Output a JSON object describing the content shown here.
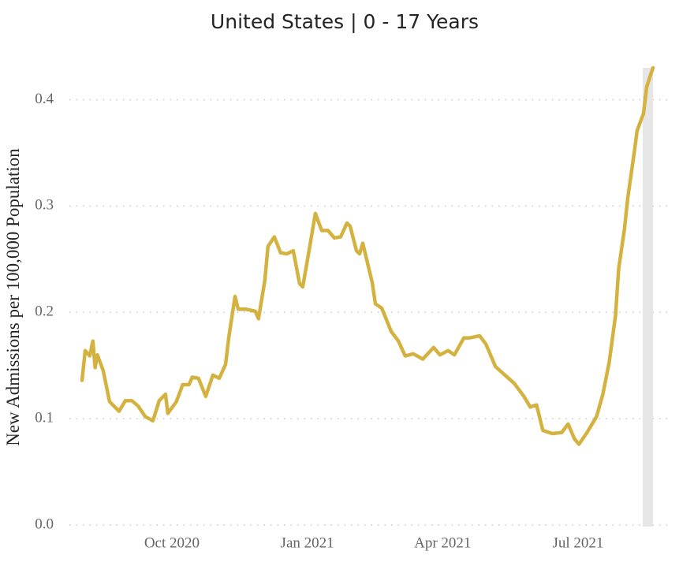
{
  "chart_data": {
    "type": "line",
    "title": "United States | 0 - 17 Years",
    "y_label": "New Admissions per 100,000 Population",
    "color": "#d4b23f",
    "grid": true,
    "xlim": [
      6.73,
      20.01
    ],
    "xticks": [
      {
        "value": 9,
        "label": "Oct 2020"
      },
      {
        "value": 12,
        "label": "Jan 2021"
      },
      {
        "value": 15,
        "label": "Apr 2021"
      },
      {
        "value": 18,
        "label": "Jul 2021"
      }
    ],
    "ylim": [
      0,
      0.43
    ],
    "yticks": [
      {
        "value": 0,
        "label": "0.0"
      },
      0.1,
      0.2,
      0.3,
      0.4
    ],
    "x": [
      7.01,
      7.08,
      7.18,
      7.25,
      7.3,
      7.35,
      7.48,
      7.62,
      7.76,
      7.83,
      7.97,
      8.11,
      8.25,
      8.41,
      8.58,
      8.72,
      8.86,
      8.91,
      9.1,
      9.24,
      9.38,
      9.45,
      9.59,
      9.75,
      9.91,
      10.05,
      10.19,
      10.26,
      10.4,
      10.47,
      10.64,
      10.85,
      10.92,
      11.06,
      11.13,
      11.27,
      11.41,
      11.55,
      11.69,
      11.83,
      11.9,
      12.04,
      12.18,
      12.32,
      12.46,
      12.6,
      12.74,
      12.88,
      12.95,
      13.09,
      13.16,
      13.23,
      13.44,
      13.51,
      13.65,
      13.86,
      14.02,
      14.17,
      14.35,
      14.56,
      14.8,
      14.94,
      15.12,
      15.26,
      15.47,
      15.61,
      15.82,
      15.96,
      16.17,
      16.38,
      16.59,
      16.8,
      16.94,
      17.08,
      17.22,
      17.43,
      17.64,
      17.78,
      17.92,
      18.02,
      18.2,
      18.41,
      18.55,
      18.69,
      18.83,
      18.9,
      19.03,
      19.1,
      19.24,
      19.31,
      19.45,
      19.52,
      19.66
    ],
    "values": [
      0.136,
      0.164,
      0.159,
      0.173,
      0.148,
      0.16,
      0.145,
      0.116,
      0.11,
      0.107,
      0.117,
      0.117,
      0.112,
      0.102,
      0.098,
      0.117,
      0.123,
      0.105,
      0.116,
      0.132,
      0.132,
      0.139,
      0.138,
      0.121,
      0.141,
      0.138,
      0.151,
      0.176,
      0.215,
      0.203,
      0.203,
      0.201,
      0.194,
      0.23,
      0.262,
      0.271,
      0.256,
      0.255,
      0.258,
      0.227,
      0.224,
      0.258,
      0.293,
      0.277,
      0.277,
      0.27,
      0.271,
      0.284,
      0.281,
      0.258,
      0.255,
      0.265,
      0.228,
      0.208,
      0.204,
      0.182,
      0.173,
      0.159,
      0.161,
      0.156,
      0.167,
      0.16,
      0.164,
      0.16,
      0.176,
      0.176,
      0.178,
      0.17,
      0.149,
      0.141,
      0.133,
      0.121,
      0.111,
      0.113,
      0.089,
      0.086,
      0.087,
      0.095,
      0.081,
      0.076,
      0.087,
      0.102,
      0.123,
      0.153,
      0.197,
      0.241,
      0.279,
      0.307,
      0.349,
      0.371,
      0.387,
      0.412,
      0.43
    ]
  }
}
